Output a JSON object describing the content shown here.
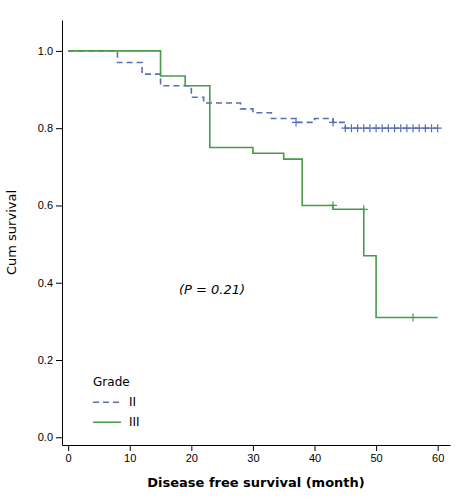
{
  "chart_data": {
    "type": "line",
    "xlabel": "Disease free survival (month)",
    "ylabel": "Cum survival",
    "xlim": [
      -1,
      62
    ],
    "ylim": [
      -0.02,
      1.08
    ],
    "xticks": [
      0,
      10,
      20,
      30,
      40,
      50,
      60
    ],
    "yticks": [
      {
        "value": 0.0,
        "label": "0.0"
      },
      0.2,
      0.4,
      0.6,
      0.8,
      {
        "value": 1.0,
        "label": "1.0"
      }
    ],
    "grid": false,
    "legend": "lower left",
    "legend_title": "Grade",
    "annotations": [
      {
        "text": "(P = 0.21)",
        "x": 18,
        "y": 0.37
      }
    ],
    "series": [
      {
        "name": "II",
        "type": "line",
        "line_style": "dashed",
        "color": "#5b6eb5",
        "x": [
          0,
          8,
          8,
          12,
          12,
          15,
          15,
          20,
          20,
          22,
          22,
          28,
          28,
          30,
          30,
          33,
          33,
          37,
          37,
          40,
          40,
          43,
          43,
          45,
          45,
          60
        ],
        "values": [
          1.0,
          1.0,
          0.97,
          0.97,
          0.94,
          0.94,
          0.91,
          0.91,
          0.88,
          0.88,
          0.865,
          0.865,
          0.85,
          0.85,
          0.84,
          0.84,
          0.825,
          0.825,
          0.815,
          0.815,
          0.825,
          0.825,
          0.815,
          0.815,
          0.8,
          0.8
        ]
      },
      {
        "name": "III",
        "type": "line",
        "line_style": "solid",
        "color": "#4a9a4a",
        "x": [
          0,
          15,
          15,
          19,
          19,
          23,
          23,
          30,
          30,
          35,
          35,
          38,
          38,
          43,
          43,
          48,
          48,
          50,
          50,
          53,
          53,
          60
        ],
        "values": [
          1.0,
          1.0,
          0.935,
          0.935,
          0.91,
          0.91,
          0.75,
          0.75,
          0.735,
          0.735,
          0.72,
          0.72,
          0.6,
          0.6,
          0.59,
          0.59,
          0.47,
          0.47,
          0.31,
          0.31,
          0.31,
          0.31
        ]
      },
      {
        "type": "scatter",
        "marker": "plus",
        "color": "#5b6eb5",
        "x": [
          37,
          43,
          45,
          46,
          47,
          48,
          49,
          50,
          51,
          52,
          53,
          54,
          55,
          56,
          57,
          58,
          59,
          60
        ],
        "values": [
          0.815,
          0.815,
          0.8,
          0.8,
          0.8,
          0.8,
          0.8,
          0.8,
          0.8,
          0.8,
          0.8,
          0.8,
          0.8,
          0.8,
          0.8,
          0.8,
          0.8,
          0.8
        ]
      },
      {
        "type": "scatter",
        "marker": "plus",
        "color": "#4a9a4a",
        "x": [
          43,
          48,
          56
        ],
        "values": [
          0.6,
          0.59,
          0.31
        ]
      }
    ]
  }
}
